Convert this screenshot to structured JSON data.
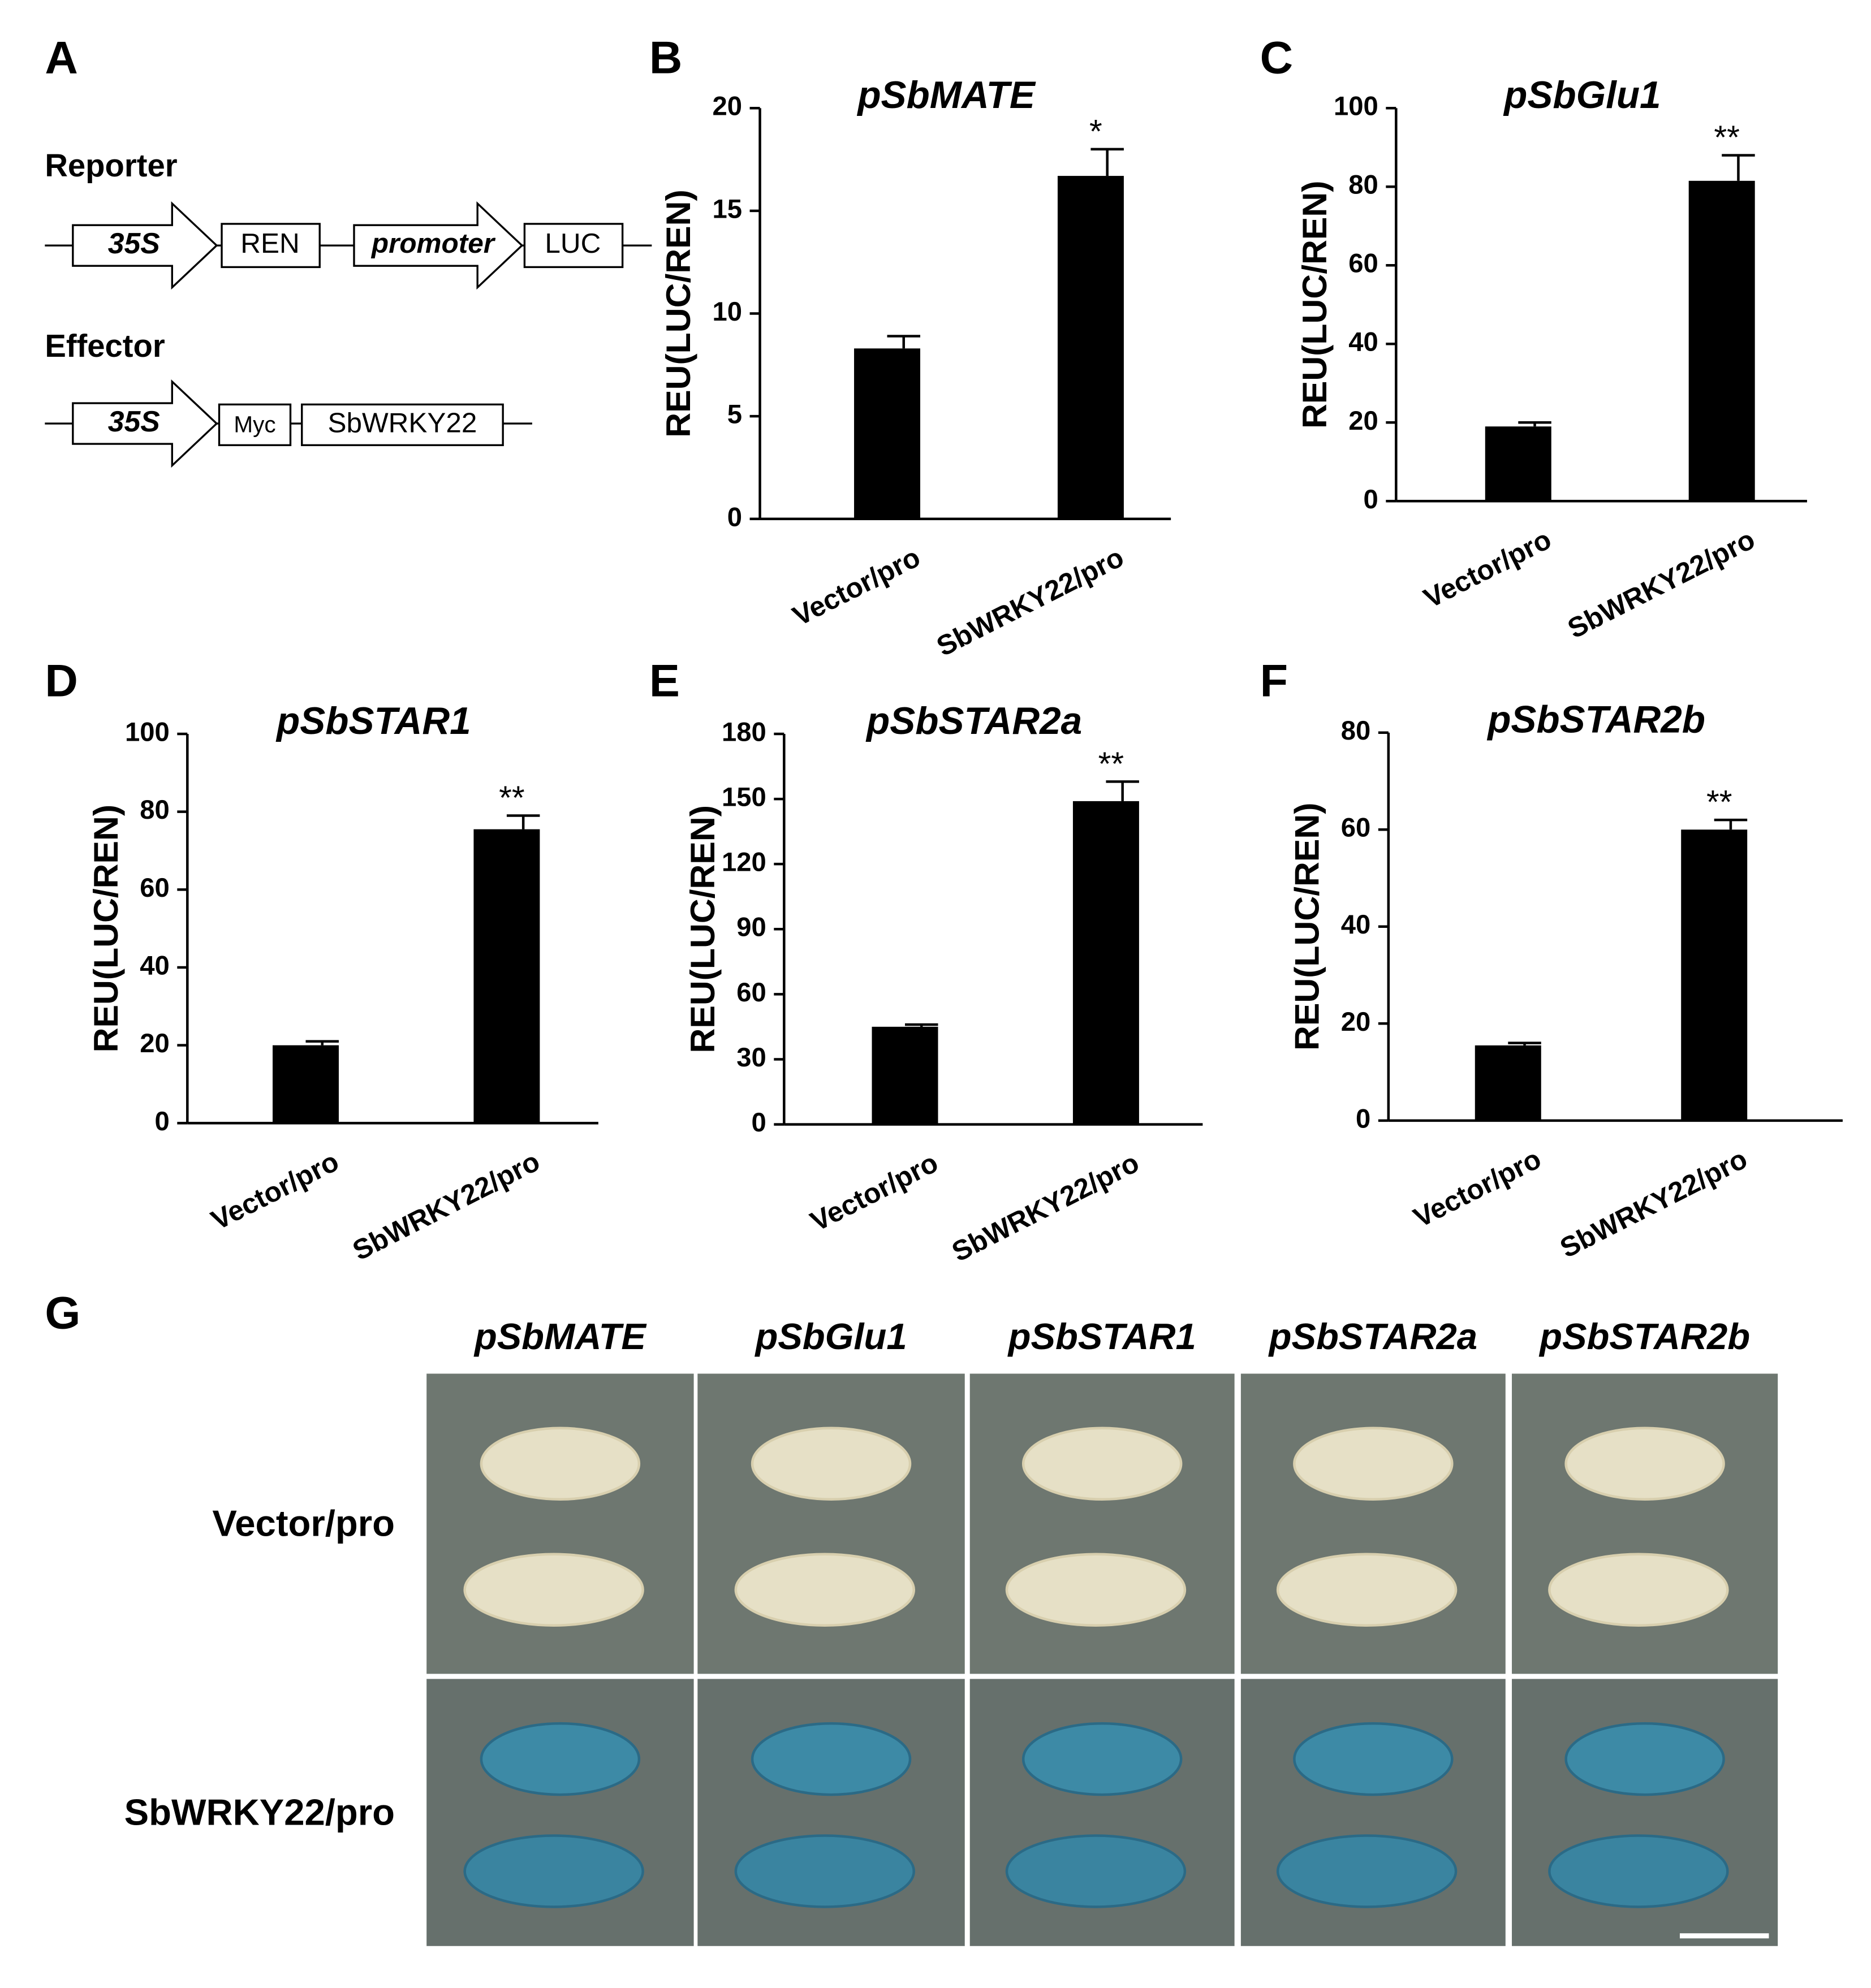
{
  "panel_labels": [
    "A",
    "B",
    "C",
    "D",
    "E",
    "F",
    "G"
  ],
  "diagram": {
    "reporter_label": "Reporter",
    "effector_label": "Effector",
    "reporter_parts": [
      "35S",
      "REN",
      "promoter",
      "LUC"
    ],
    "effector_parts": [
      "35S",
      "Myc",
      "SbWRKY22"
    ]
  },
  "chart_data": [
    {
      "type": "bar",
      "title": "pSbMATE",
      "ylabel": "REU(LUC/REN)",
      "categories": [
        "Vector/pro",
        "SbWRKY22/pro"
      ],
      "values": [
        8.3,
        16.7
      ],
      "errors": [
        0.6,
        1.3
      ],
      "significance": [
        null,
        "*"
      ],
      "ylim": [
        0,
        20
      ],
      "yticks": [
        0,
        5,
        10,
        15,
        20
      ],
      "color": "#000000"
    },
    {
      "type": "bar",
      "title": "pSbGlu1",
      "ylabel": "REU(LUC/REN)",
      "categories": [
        "Vector/pro",
        "SbWRKY22/pro"
      ],
      "values": [
        19,
        81.5
      ],
      "errors": [
        1,
        6.5
      ],
      "significance": [
        null,
        "**"
      ],
      "ylim": [
        0,
        100
      ],
      "yticks": [
        0,
        20,
        40,
        60,
        80,
        100
      ],
      "color": "#000000"
    },
    {
      "type": "bar",
      "title": "pSbSTAR1",
      "ylabel": "REU(LUC/REN)",
      "categories": [
        "Vector/pro",
        "SbWRKY22/pro"
      ],
      "values": [
        20,
        75.5
      ],
      "errors": [
        1,
        3.5
      ],
      "significance": [
        null,
        "**"
      ],
      "ylim": [
        0,
        100
      ],
      "yticks": [
        0,
        20,
        40,
        60,
        80,
        100
      ],
      "color": "#000000"
    },
    {
      "type": "bar",
      "title": "pSbSTAR2a",
      "ylabel": "REU(LUC/REN)",
      "categories": [
        "Vector/pro",
        "SbWRKY22/pro"
      ],
      "values": [
        45,
        149
      ],
      "errors": [
        1,
        9
      ],
      "significance": [
        null,
        "**"
      ],
      "ylim": [
        0,
        180
      ],
      "yticks": [
        0,
        30,
        60,
        90,
        120,
        150,
        180
      ],
      "color": "#000000"
    },
    {
      "type": "bar",
      "title": "pSbSTAR2b",
      "ylabel": "REU(LUC/REN)",
      "categories": [
        "Vector/pro",
        "SbWRKY22/pro"
      ],
      "values": [
        15.5,
        60
      ],
      "errors": [
        0.5,
        2
      ],
      "significance": [
        null,
        "**"
      ],
      "ylim": [
        0,
        80
      ],
      "yticks": [
        0,
        20,
        40,
        60,
        80
      ],
      "color": "#000000"
    }
  ],
  "photo_panel": {
    "columns": [
      "pSbMATE",
      "pSbGlu1",
      "pSbSTAR1",
      "pSbSTAR2a",
      "pSbSTAR2b"
    ],
    "rows": [
      "Vector/pro",
      "SbWRKY22/pro"
    ]
  }
}
